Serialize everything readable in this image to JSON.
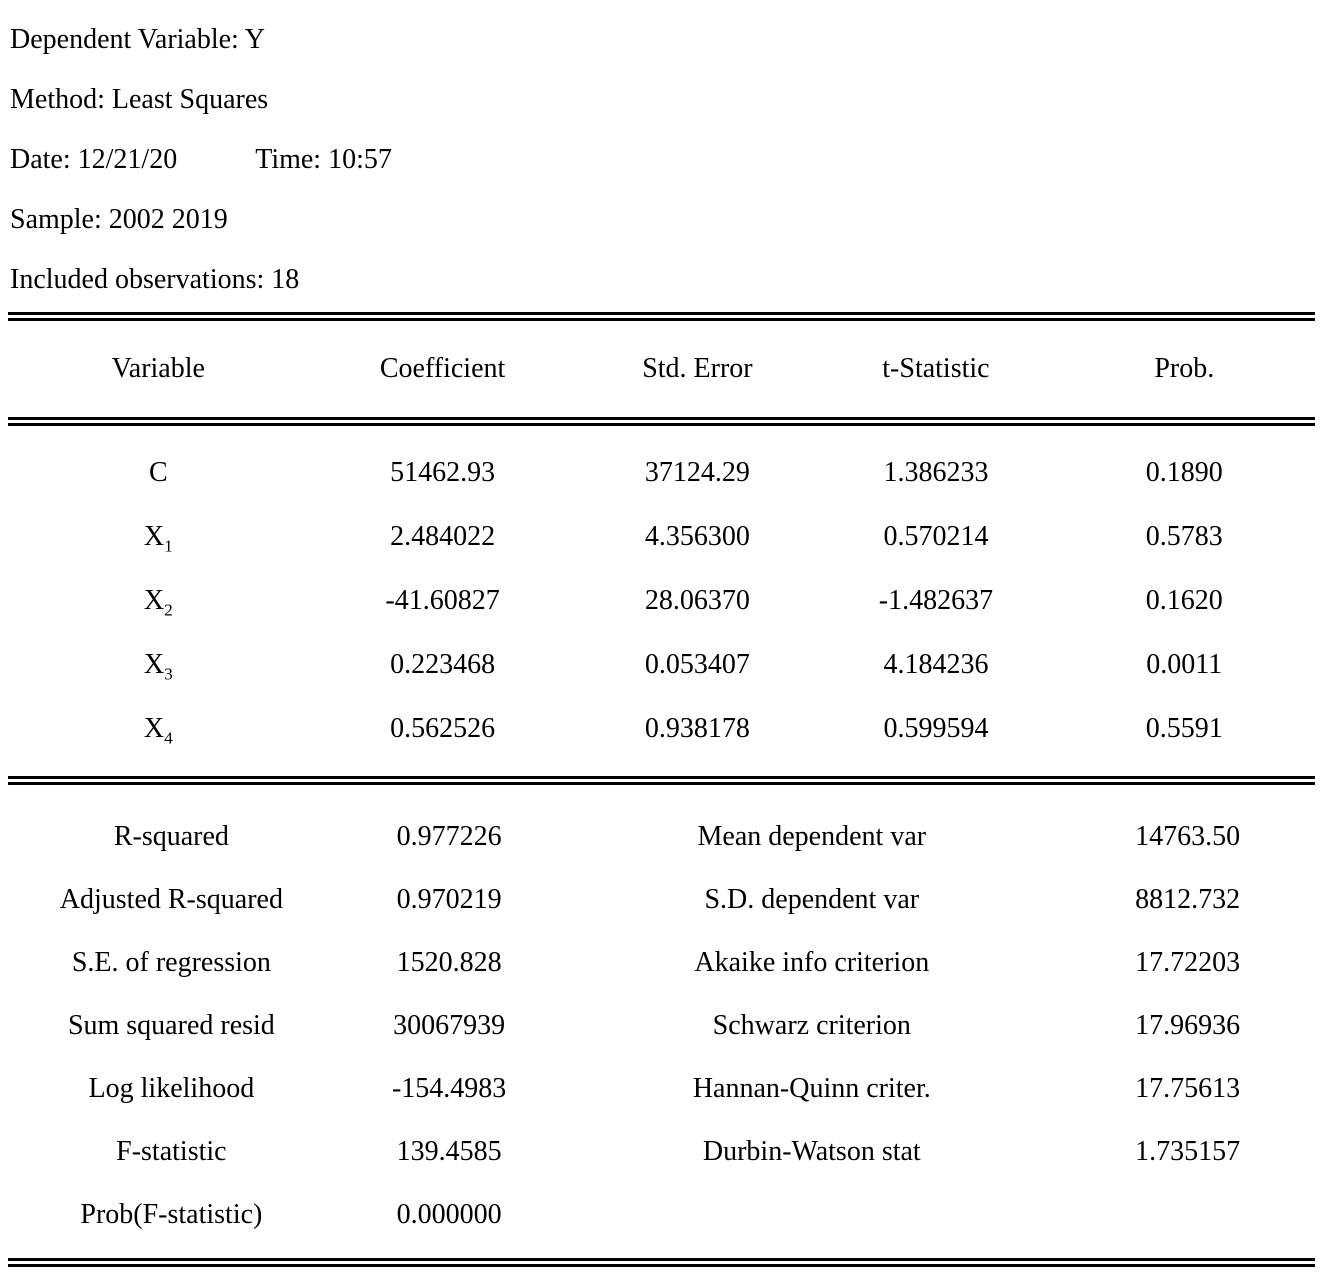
{
  "header": {
    "dependent_variable": "Dependent Variable: Y",
    "method": "Method: Least Squares",
    "date": "Date: 12/21/20",
    "time": "Time: 10:57",
    "sample": "Sample: 2002 2019",
    "observations": "Included observations: 18"
  },
  "coef": {
    "columns": {
      "variable": "Variable",
      "coefficient": "Coefficient",
      "std_error": "Std. Error",
      "t_statistic": "t-Statistic",
      "prob": "Prob."
    },
    "rows": [
      {
        "variable": "C",
        "subscript": "",
        "coefficient": "51462.93",
        "std_error": "37124.29",
        "t_statistic": "1.386233",
        "prob": "0.1890"
      },
      {
        "variable": "X",
        "subscript": "1",
        "coefficient": "2.484022",
        "std_error": "4.356300",
        "t_statistic": "0.570214",
        "prob": "0.5783"
      },
      {
        "variable": "X",
        "subscript": "2",
        "coefficient": "-41.60827",
        "std_error": "28.06370",
        "t_statistic": "-1.482637",
        "prob": "0.1620"
      },
      {
        "variable": "X",
        "subscript": "3",
        "coefficient": "0.223468",
        "std_error": "0.053407",
        "t_statistic": "4.184236",
        "prob": "0.0011"
      },
      {
        "variable": "X",
        "subscript": "4",
        "coefficient": "0.562526",
        "std_error": "0.938178",
        "t_statistic": "0.599594",
        "prob": "0.5591"
      }
    ]
  },
  "summary": {
    "rows": [
      {
        "l_label": "R-squared",
        "l_value": "0.977226",
        "r_label": "Mean dependent var",
        "r_value": "14763.50"
      },
      {
        "l_label": "Adjusted R-squared",
        "l_value": "0.970219",
        "r_label": "S.D. dependent var",
        "r_value": "8812.732"
      },
      {
        "l_label": "S.E. of regression",
        "l_value": "1520.828",
        "r_label": "Akaike info criterion",
        "r_value": "17.72203"
      },
      {
        "l_label": "Sum squared resid",
        "l_value": "30067939",
        "r_label": "Schwarz criterion",
        "r_value": "17.96936"
      },
      {
        "l_label": "Log likelihood",
        "l_value": "-154.4983",
        "r_label": "Hannan-Quinn criter.",
        "r_value": "17.75613"
      },
      {
        "l_label": "F-statistic",
        "l_value": "139.4585",
        "r_label": "Durbin-Watson stat",
        "r_value": "1.735157"
      },
      {
        "l_label": "Prob(F-statistic)",
        "l_value": "0.000000",
        "r_label": "",
        "r_value": ""
      }
    ]
  }
}
